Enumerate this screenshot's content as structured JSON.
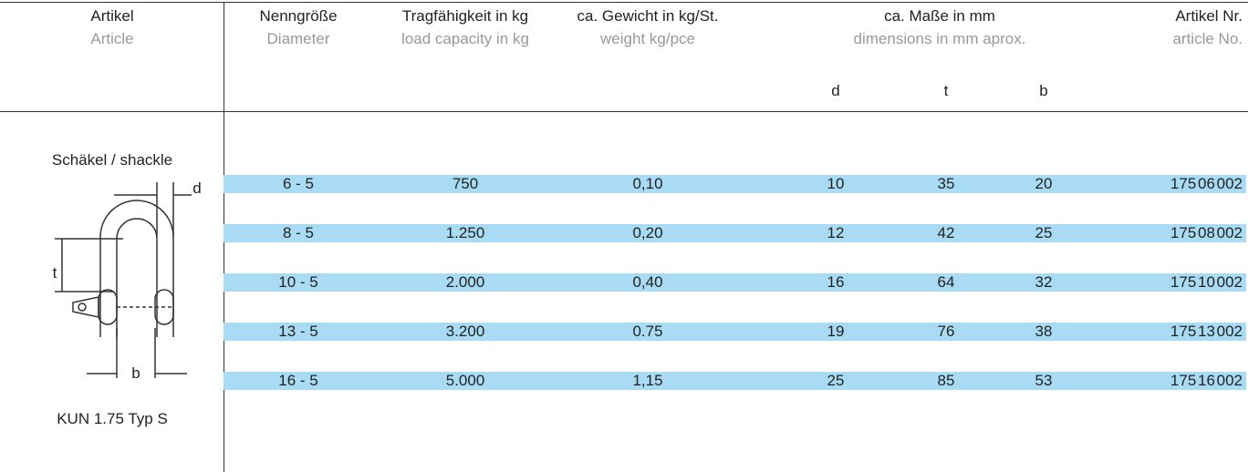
{
  "header": {
    "columns": [
      {
        "de": "Artikel",
        "en": "Article"
      },
      {
        "de": "Nenngröße",
        "en": "Diameter"
      },
      {
        "de": "Tragfähigkeit in kg",
        "en": "load capacity in kg"
      },
      {
        "de": "ca. Gewicht in kg/St.",
        "en": "weight kg/pce"
      },
      {
        "de": "ca. Maße in mm",
        "en": "dimensions in mm aprox."
      },
      {
        "de": "Artikel Nr.",
        "en": "article No."
      }
    ],
    "dims": [
      "d",
      "t",
      "b"
    ]
  },
  "article": {
    "name": "Schäkel / shackle",
    "type": "KUN 1.75 Typ S",
    "diagram_labels": [
      "d",
      "t",
      "b"
    ]
  },
  "table": {
    "rows": [
      [
        "6 - 5",
        "750",
        "0,10",
        "10",
        "35",
        "20",
        "175 06 002"
      ],
      [
        "8 - 5",
        "1.250",
        "0,20",
        "12",
        "42",
        "25",
        "175 08 002"
      ],
      [
        "10 - 5",
        "2.000",
        "0,40",
        "16",
        "64",
        "32",
        "175 10 002"
      ],
      [
        "13 - 5",
        "3.200",
        "0.75",
        "19",
        "76",
        "38",
        "175 13 002"
      ],
      [
        "16 - 5",
        "5.000",
        "1,15",
        "25",
        "85",
        "53",
        "175 16 002"
      ]
    ]
  }
}
